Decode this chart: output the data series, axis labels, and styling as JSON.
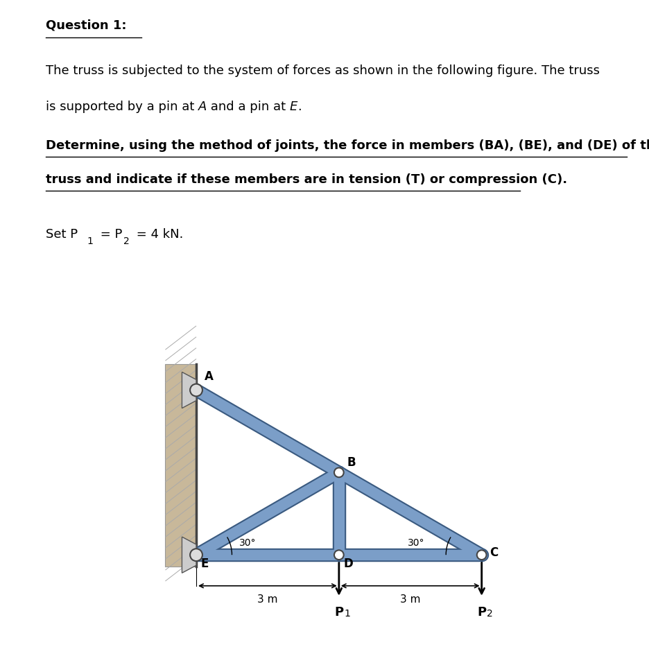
{
  "bg_color": "#ffffff",
  "wall_color": "#c8b89a",
  "wall_color2": "#b0a090",
  "member_color": "#7b9ec8",
  "member_edge_color": "#3a5a80",
  "joint_color": "#888888",
  "text_q1": "Question 1:",
  "text_line1": "The truss is subjected to the system of forces as shown in the following figure. The truss",
  "text_line2a": "is supported by a pin at ",
  "text_line2b": "A",
  "text_line2c": " and a pin at ",
  "text_line2d": "E",
  "text_line2e": ".",
  "text_line3": "Determine, using the method of joints, the force in members (BA), (BE), and (DE) of the",
  "text_line4": "truss and indicate if these members are in tension (T) or compression (C).",
  "text_set": "Set P",
  "text_sub1": "1",
  "text_eq1": " = P",
  "text_sub2": "2",
  "text_eq2": " = 4 kN.",
  "node_labels": [
    "A",
    "B",
    "C",
    "D",
    "E"
  ],
  "angle_label": "30°",
  "dim_label": "3 m",
  "P1_label": "P",
  "P2_label": "P",
  "font_size_body": 13,
  "font_size_label": 12,
  "member_lw": 11,
  "tan30": 0.57735
}
